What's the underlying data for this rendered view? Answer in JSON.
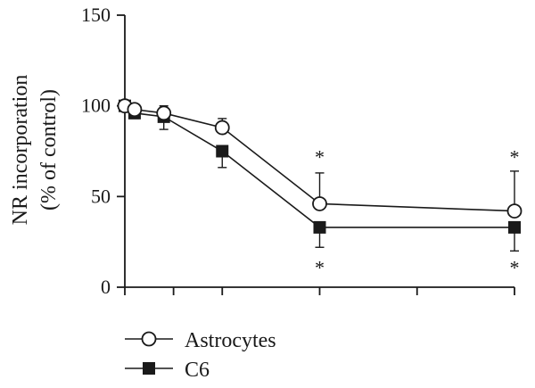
{
  "chart_data": {
    "type": "line",
    "ylabel_line1": "NR incorporation",
    "ylabel_line2": "(% of control)",
    "xlabel": "",
    "ylim": [
      0,
      150
    ],
    "yticks": [
      0,
      50,
      100,
      150
    ],
    "x_positions": [
      0,
      0.1,
      0.4,
      1,
      2,
      4
    ],
    "x_ticks": [
      0,
      0.5,
      1,
      2,
      3,
      4
    ],
    "x_tick_labels_visible": false,
    "grid": false,
    "legend_position": "bottom-left",
    "series": [
      {
        "name": "Astrocytes",
        "marker": "open-circle",
        "values": [
          100,
          98,
          96,
          88,
          46,
          42
        ],
        "error_upper": [
          2,
          2,
          4,
          5,
          17,
          22
        ],
        "error_lower": [
          0,
          0,
          0,
          0,
          0,
          0
        ]
      },
      {
        "name": "C6",
        "marker": "filled-square",
        "values": [
          100,
          96,
          94,
          75,
          33,
          33
        ],
        "error_upper": [
          0,
          0,
          0,
          0,
          0,
          0
        ],
        "error_lower": [
          2,
          3,
          7,
          9,
          11,
          13
        ]
      }
    ],
    "annotations": [
      {
        "text": "*",
        "x": 2,
        "y": 73
      },
      {
        "text": "*",
        "x": 2,
        "y": 12
      },
      {
        "text": "*",
        "x": 4,
        "y": 73
      },
      {
        "text": "*",
        "x": 4,
        "y": 12
      }
    ]
  }
}
